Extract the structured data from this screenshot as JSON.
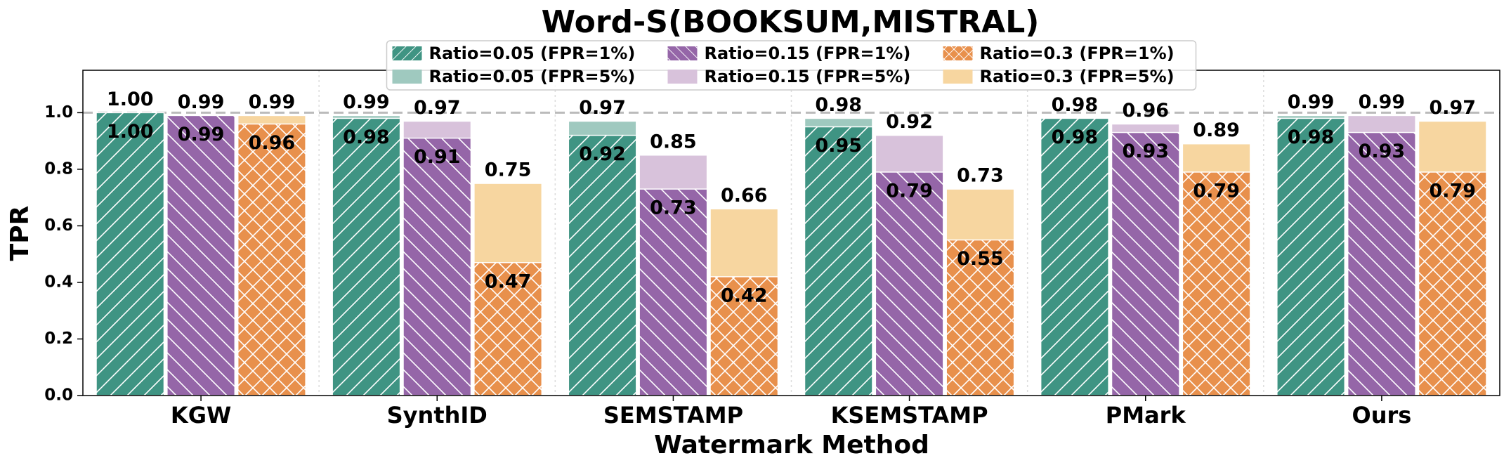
{
  "chart_data": {
    "type": "overlaid-bar",
    "title": "Word-S(BOOKSUM,MISTRAL)",
    "x_label": "Watermark Method",
    "y_label": "TPR",
    "categories": [
      "KGW",
      "SynthID",
      "SEMSTAMP",
      "KSEMSTAMP",
      "PMark",
      "Ours"
    ],
    "ylim": [
      0,
      1.15
    ],
    "yticks": [
      {
        "value": 0,
        "label": "0.0"
      },
      0.2,
      0.4,
      0.6,
      0.8,
      {
        "value": 1,
        "label": "1.0"
      }
    ],
    "reference_line": 1,
    "legend": "upper center",
    "series": [
      {
        "name": "Ratio=0.05 (FPR=1%)",
        "color": "#3f9483",
        "hatch": "/",
        "values": [
          1,
          0.98,
          0.92,
          0.95,
          0.98,
          0.98
        ],
        "value_labels": [
          "1.00",
          "0.98",
          "0.92",
          "0.95",
          "0.98",
          "0.98"
        ]
      },
      {
        "name": "Ratio=0.05 (FPR=5%)",
        "color": "#9fc9bf",
        "values": [
          1,
          0.99,
          0.97,
          0.98,
          0.98,
          0.99
        ],
        "value_labels": [
          "1.00",
          "0.99",
          "0.97",
          "0.98",
          "0.98",
          "0.99"
        ]
      },
      {
        "name": "Ratio=0.15 (FPR=1%)",
        "color": "#9566a8",
        "hatch": "\\",
        "values": [
          0.99,
          0.91,
          0.73,
          0.79,
          0.93,
          0.93
        ],
        "value_labels": [
          "0.99",
          "0.91",
          "0.73",
          "0.79",
          "0.93",
          "0.93"
        ]
      },
      {
        "name": "Ratio=0.15 (FPR=5%)",
        "color": "#d8c2db",
        "values": [
          0.99,
          0.97,
          0.85,
          0.92,
          0.96,
          0.99
        ],
        "value_labels": [
          "0.99",
          "0.97",
          "0.85",
          "0.92",
          "0.96",
          "0.99"
        ]
      },
      {
        "name": "Ratio=0.3 (FPR=1%)",
        "color": "#e8904c",
        "hatch": "x",
        "values": [
          0.96,
          0.47,
          0.42,
          0.55,
          0.79,
          0.79
        ],
        "value_labels": [
          "0.96",
          "0.47",
          "0.42",
          "0.55",
          "0.79",
          "0.79"
        ]
      },
      {
        "name": "Ratio=0.3 (FPR=5%)",
        "color": "#f7d6a0",
        "values": [
          0.99,
          0.75,
          0.66,
          0.73,
          0.89,
          0.97
        ],
        "value_labels": [
          "0.99",
          "0.75",
          "0.66",
          "0.73",
          "0.89",
          "0.97"
        ]
      }
    ]
  }
}
